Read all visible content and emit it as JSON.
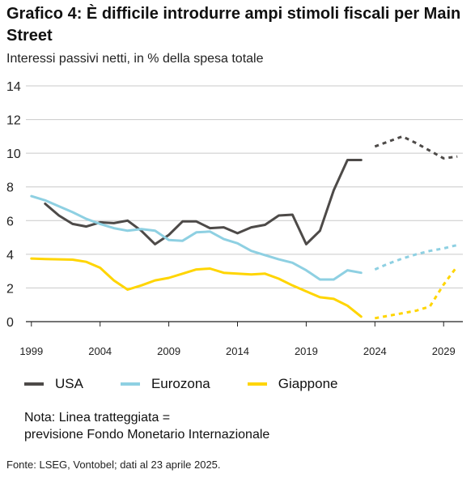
{
  "title": "Grafico 4: È difficile introdurre ampi stimoli fiscali per Main Street",
  "subtitle": "Interessi passivi netti, in % della spesa totale",
  "chart_data": {
    "type": "line",
    "ylim": [
      0,
      14
    ],
    "xlim": [
      1998.6,
      2030.4
    ],
    "y_ticks": [
      0,
      2,
      4,
      6,
      8,
      10,
      12,
      14
    ],
    "x_ticks": [
      1999,
      2004,
      2009,
      2014,
      2019,
      2024,
      2029
    ],
    "grid": true,
    "series": [
      {
        "name": "USA",
        "color": "#4d4a48",
        "actual": {
          "x": [
            2000,
            2001,
            2002,
            2003,
            2004,
            2005,
            2006,
            2007,
            2008,
            2009,
            2010,
            2011,
            2012,
            2013,
            2014,
            2015,
            2016,
            2017,
            2018,
            2019,
            2020,
            2021,
            2022,
            2023
          ],
          "y": [
            7.0,
            6.3,
            5.8,
            5.65,
            5.9,
            5.85,
            6.0,
            5.4,
            4.6,
            5.15,
            5.95,
            5.95,
            5.55,
            5.6,
            5.25,
            5.6,
            5.75,
            6.3,
            6.35,
            4.6,
            5.4,
            7.8,
            9.6,
            9.6
          ]
        },
        "forecast": {
          "x": [
            2024,
            2025,
            2026,
            2027,
            2028,
            2029,
            2030
          ],
          "y": [
            10.4,
            10.7,
            11.0,
            10.6,
            10.15,
            9.7,
            9.8
          ]
        }
      },
      {
        "name": "Eurozona",
        "color": "#8ed0e2",
        "actual": {
          "x": [
            1999,
            2000,
            2001,
            2002,
            2003,
            2004,
            2005,
            2006,
            2007,
            2008,
            2009,
            2010,
            2011,
            2012,
            2013,
            2014,
            2015,
            2016,
            2017,
            2018,
            2019,
            2020,
            2021,
            2022,
            2023
          ],
          "y": [
            7.45,
            7.2,
            6.85,
            6.5,
            6.1,
            5.8,
            5.55,
            5.4,
            5.5,
            5.4,
            4.85,
            4.8,
            5.3,
            5.35,
            4.9,
            4.65,
            4.2,
            3.95,
            3.7,
            3.5,
            3.05,
            2.5,
            2.5,
            3.05,
            2.9
          ]
        },
        "forecast": {
          "x": [
            2024,
            2025,
            2026,
            2027,
            2028,
            2029,
            2030
          ],
          "y": [
            3.1,
            3.45,
            3.75,
            4.0,
            4.2,
            4.35,
            4.55
          ]
        }
      },
      {
        "name": "Giappone",
        "color": "#ffd500",
        "actual": {
          "x": [
            1999,
            2000,
            2001,
            2002,
            2003,
            2004,
            2005,
            2006,
            2007,
            2008,
            2009,
            2010,
            2011,
            2012,
            2013,
            2014,
            2015,
            2016,
            2017,
            2018,
            2019,
            2020,
            2021,
            2022,
            2023
          ],
          "y": [
            3.75,
            3.72,
            3.7,
            3.68,
            3.55,
            3.2,
            2.45,
            1.9,
            2.15,
            2.45,
            2.6,
            2.85,
            3.1,
            3.15,
            2.9,
            2.85,
            2.8,
            2.85,
            2.55,
            2.15,
            1.8,
            1.45,
            1.35,
            0.95,
            0.3
          ]
        },
        "forecast": {
          "x": [
            2024,
            2025,
            2026,
            2027,
            2028,
            2029,
            2030
          ],
          "y": [
            0.2,
            0.35,
            0.5,
            0.65,
            0.9,
            2.2,
            3.3
          ]
        }
      }
    ]
  },
  "legend": [
    {
      "label": "USA",
      "color": "#4d4a48"
    },
    {
      "label": "Eurozona",
      "color": "#8ed0e2"
    },
    {
      "label": "Giappone",
      "color": "#ffd500"
    }
  ],
  "note": {
    "line1": "Nota: Linea tratteggiata =",
    "line2": "previsione Fondo Monetario Internazionale"
  },
  "source": "Fonte: LSEG, Vontobel; dati al 23 aprile 2025."
}
